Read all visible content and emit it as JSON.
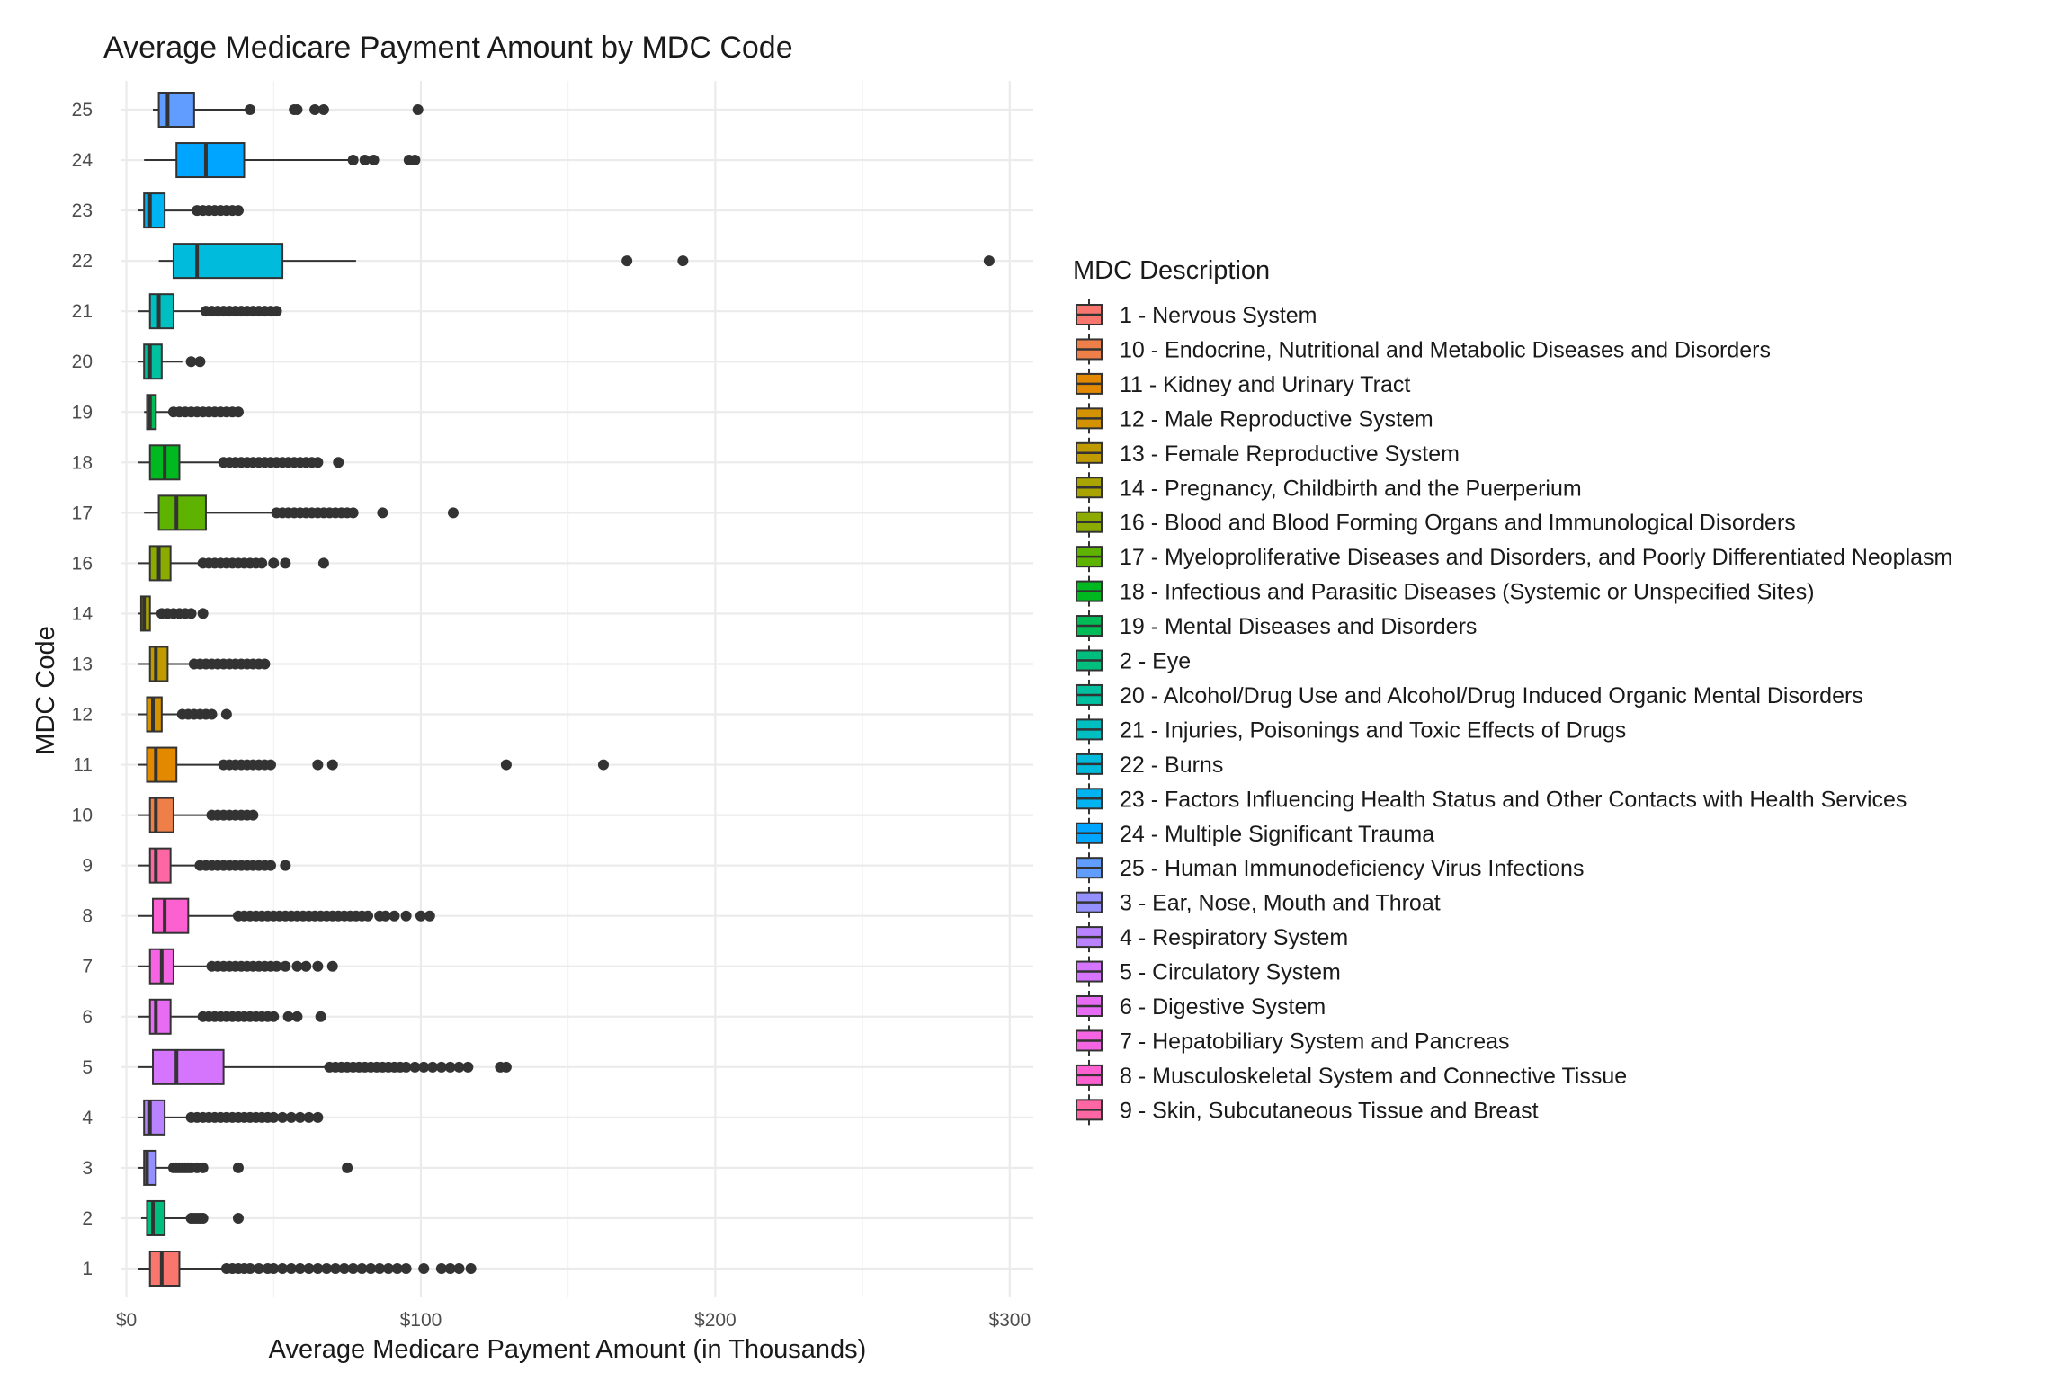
{
  "chart_data": {
    "type": "boxplot",
    "title": "Average Medicare Payment Amount by MDC Code",
    "xlabel": "Average Medicare Payment Amount (in Thousands)",
    "ylabel": "MDC Code",
    "xlim": [
      -2,
      308
    ],
    "x_ticks": [
      0,
      100,
      200,
      300
    ],
    "x_tick_labels": [
      "$0",
      "$100",
      "$200",
      "$300"
    ],
    "grid": true,
    "orientation": "horizontal",
    "legend": {
      "title": "MDC Description",
      "placement": "right",
      "items": [
        {
          "label": "1 - Nervous System",
          "color": "#F8766D"
        },
        {
          "label": "10 - Endocrine, Nutritional and Metabolic Diseases and Disorders",
          "color": "#EF7F49"
        },
        {
          "label": "11 - Kidney and Urinary Tract",
          "color": "#E38900"
        },
        {
          "label": "12 - Male Reproductive System",
          "color": "#D39200"
        },
        {
          "label": "13 - Female Reproductive System",
          "color": "#C09B00"
        },
        {
          "label": "14 - Pregnancy, Childbirth and the Puerperium",
          "color": "#A9A400"
        },
        {
          "label": "16 - Blood and Blood Forming Organs and Immunological Disorders",
          "color": "#8BAB00"
        },
        {
          "label": "17 - Myeloproliferative Diseases and Disorders, and Poorly Differentiated Neoplasm",
          "color": "#5EB300"
        },
        {
          "label": "18 - Infectious and Parasitic Diseases (Systemic or Unspecified Sites)",
          "color": "#00B81F"
        },
        {
          "label": "19 - Mental Diseases and Disorders",
          "color": "#00BC56"
        },
        {
          "label": "2 - Eye",
          "color": "#00BE7D"
        },
        {
          "label": "20 - Alcohol/Drug Use and Alcohol/Drug Induced Organic Mental Disorders",
          "color": "#00C0A0"
        },
        {
          "label": "21 - Injuries, Poisonings and Toxic Effects of Drugs",
          "color": "#00BFC1"
        },
        {
          "label": "22 - Burns",
          "color": "#00BBDB"
        },
        {
          "label": "23 - Factors Influencing Health Status and Other Contacts with Health Services",
          "color": "#00B3F1"
        },
        {
          "label": "24 - Multiple Significant Trauma",
          "color": "#00A5FF"
        },
        {
          "label": "25 - Human Immunodeficiency Virus Infections",
          "color": "#619CFF"
        },
        {
          "label": "3 - Ear, Nose, Mouth and Throat",
          "color": "#9590FF"
        },
        {
          "label": "4 - Respiratory System",
          "color": "#B983FF"
        },
        {
          "label": "5 - Circulatory System",
          "color": "#D575FE"
        },
        {
          "label": "6 - Digestive System",
          "color": "#E76BF3"
        },
        {
          "label": "7 - Hepatobiliary System and Pancreas",
          "color": "#F564E3"
        },
        {
          "label": "8 - Musculoskeletal System and Connective Tissue",
          "color": "#FD61D1"
        },
        {
          "label": "9 - Skin, Subcutaneous Tissue and Breast",
          "color": "#FF67A4"
        }
      ]
    },
    "series": [
      {
        "code": "1",
        "color": "#F8766D",
        "whisker_low": 4,
        "q1": 8,
        "median": 12,
        "q3": 18,
        "whisker_high": 33,
        "outliers": [
          34,
          36,
          38,
          40,
          42,
          45,
          48,
          50,
          53,
          56,
          59,
          62,
          65,
          68,
          71,
          74,
          77,
          80,
          83,
          86,
          89,
          92,
          95,
          101,
          107,
          110,
          113,
          117
        ]
      },
      {
        "code": "2",
        "color": "#00BE7D",
        "whisker_low": 5,
        "q1": 7,
        "median": 9,
        "q3": 13,
        "whisker_high": 21,
        "outliers": [
          22,
          23,
          24,
          25,
          26,
          38
        ]
      },
      {
        "code": "3",
        "color": "#9590FF",
        "whisker_low": 4,
        "q1": 6,
        "median": 7,
        "q3": 10,
        "whisker_high": 15,
        "outliers": [
          16,
          17,
          18,
          19,
          20,
          21,
          22,
          24,
          26,
          38,
          75
        ]
      },
      {
        "code": "4",
        "color": "#B983FF",
        "whisker_low": 4,
        "q1": 6,
        "median": 8,
        "q3": 13,
        "whisker_high": 21,
        "outliers": [
          22,
          24,
          26,
          28,
          30,
          32,
          34,
          36,
          38,
          40,
          42,
          44,
          46,
          48,
          50,
          53,
          56,
          59,
          62,
          65
        ]
      },
      {
        "code": "5",
        "color": "#D575FE",
        "whisker_low": 4,
        "q1": 9,
        "median": 17,
        "q3": 33,
        "whisker_high": 68,
        "outliers": [
          69,
          71,
          73,
          75,
          77,
          79,
          81,
          83,
          85,
          87,
          89,
          91,
          93,
          95,
          98,
          101,
          104,
          107,
          110,
          113,
          116,
          127,
          129
        ]
      },
      {
        "code": "6",
        "color": "#E76BF3",
        "whisker_low": 4,
        "q1": 8,
        "median": 10,
        "q3": 15,
        "whisker_high": 25,
        "outliers": [
          26,
          28,
          30,
          32,
          34,
          36,
          38,
          40,
          42,
          44,
          46,
          48,
          50,
          55,
          58,
          66
        ]
      },
      {
        "code": "7",
        "color": "#F564E3",
        "whisker_low": 4,
        "q1": 8,
        "median": 12,
        "q3": 16,
        "whisker_high": 28,
        "outliers": [
          29,
          31,
          33,
          35,
          37,
          39,
          41,
          43,
          45,
          47,
          49,
          51,
          54,
          58,
          61,
          65,
          70
        ]
      },
      {
        "code": "8",
        "color": "#FD61D1",
        "whisker_low": 4,
        "q1": 9,
        "median": 13,
        "q3": 21,
        "whisker_high": 37,
        "outliers": [
          38,
          40,
          42,
          44,
          46,
          48,
          50,
          52,
          54,
          56,
          58,
          60,
          62,
          64,
          66,
          68,
          70,
          72,
          74,
          76,
          78,
          80,
          82,
          86,
          88,
          91,
          95,
          100,
          103
        ]
      },
      {
        "code": "9",
        "color": "#FF67A4",
        "whisker_low": 4,
        "q1": 8,
        "median": 10,
        "q3": 15,
        "whisker_high": 24,
        "outliers": [
          25,
          27,
          29,
          31,
          33,
          35,
          37,
          39,
          41,
          43,
          45,
          47,
          49,
          54
        ]
      },
      {
        "code": "10",
        "color": "#EF7F49",
        "whisker_low": 4,
        "q1": 8,
        "median": 10,
        "q3": 16,
        "whisker_high": 28,
        "outliers": [
          29,
          31,
          33,
          35,
          37,
          39,
          41,
          43
        ]
      },
      {
        "code": "11",
        "color": "#E38900",
        "whisker_low": 4,
        "q1": 7,
        "median": 10,
        "q3": 17,
        "whisker_high": 32,
        "outliers": [
          33,
          35,
          37,
          39,
          41,
          43,
          45,
          47,
          49,
          65,
          70,
          129,
          162
        ]
      },
      {
        "code": "12",
        "color": "#D39200",
        "whisker_low": 4,
        "q1": 7,
        "median": 9,
        "q3": 12,
        "whisker_high": 18,
        "outliers": [
          19,
          21,
          23,
          25,
          27,
          29,
          34
        ]
      },
      {
        "code": "13",
        "color": "#C09B00",
        "whisker_low": 4,
        "q1": 8,
        "median": 10,
        "q3": 14,
        "whisker_high": 22,
        "outliers": [
          23,
          25,
          27,
          29,
          31,
          33,
          35,
          37,
          39,
          41,
          43,
          45,
          47
        ]
      },
      {
        "code": "14",
        "color": "#A9A400",
        "whisker_low": 4,
        "q1": 5,
        "median": 6,
        "q3": 8,
        "whisker_high": 11,
        "outliers": [
          12,
          14,
          16,
          18,
          20,
          22,
          26
        ]
      },
      {
        "code": "16",
        "color": "#8BAB00",
        "whisker_low": 4,
        "q1": 8,
        "median": 11,
        "q3": 15,
        "whisker_high": 25,
        "outliers": [
          26,
          28,
          30,
          32,
          34,
          36,
          38,
          40,
          42,
          44,
          46,
          50,
          54,
          67
        ]
      },
      {
        "code": "17",
        "color": "#5EB300",
        "whisker_low": 6,
        "q1": 11,
        "median": 17,
        "q3": 27,
        "whisker_high": 50,
        "outliers": [
          51,
          53,
          55,
          57,
          59,
          61,
          63,
          65,
          67,
          69,
          71,
          73,
          75,
          77,
          87,
          111
        ]
      },
      {
        "code": "18",
        "color": "#00B81F",
        "whisker_low": 4,
        "q1": 8,
        "median": 13,
        "q3": 18,
        "whisker_high": 32,
        "outliers": [
          33,
          35,
          37,
          39,
          41,
          43,
          45,
          47,
          49,
          51,
          53,
          55,
          57,
          59,
          61,
          63,
          65,
          72
        ]
      },
      {
        "code": "19",
        "color": "#00BC56",
        "whisker_low": 6,
        "q1": 7,
        "median": 8,
        "q3": 10,
        "whisker_high": 15,
        "outliers": [
          16,
          18,
          20,
          22,
          24,
          26,
          28,
          30,
          32,
          34,
          36,
          38
        ]
      },
      {
        "code": "20",
        "color": "#00C0A0",
        "whisker_low": 4,
        "q1": 6,
        "median": 8,
        "q3": 12,
        "whisker_high": 19,
        "outliers": [
          22,
          25
        ]
      },
      {
        "code": "21",
        "color": "#00BFC1",
        "whisker_low": 4,
        "q1": 8,
        "median": 11,
        "q3": 16,
        "whisker_high": 26,
        "outliers": [
          27,
          29,
          31,
          33,
          35,
          37,
          39,
          41,
          43,
          45,
          47,
          49,
          51
        ]
      },
      {
        "code": "22",
        "color": "#00BBDB",
        "whisker_low": 11,
        "q1": 16,
        "median": 24,
        "q3": 53,
        "whisker_high": 78,
        "outliers": [
          170,
          189,
          293
        ]
      },
      {
        "code": "23",
        "color": "#00B3F1",
        "whisker_low": 4,
        "q1": 6,
        "median": 8,
        "q3": 13,
        "whisker_high": 23,
        "outliers": [
          24,
          26,
          28,
          30,
          32,
          34,
          36,
          38
        ]
      },
      {
        "code": "24",
        "color": "#00A5FF",
        "whisker_low": 6,
        "q1": 17,
        "median": 27,
        "q3": 40,
        "whisker_high": 76,
        "outliers": [
          77,
          81,
          84,
          96,
          98
        ]
      },
      {
        "code": "25",
        "color": "#619CFF",
        "whisker_low": 9,
        "q1": 11,
        "median": 14,
        "q3": 23,
        "whisker_high": 41,
        "outliers": [
          42,
          57,
          58,
          64,
          67,
          99
        ]
      }
    ],
    "y_order": [
      "1",
      "2",
      "3",
      "4",
      "5",
      "6",
      "7",
      "8",
      "9",
      "10",
      "11",
      "12",
      "13",
      "14",
      "16",
      "17",
      "18",
      "19",
      "20",
      "21",
      "22",
      "23",
      "24",
      "25"
    ]
  }
}
